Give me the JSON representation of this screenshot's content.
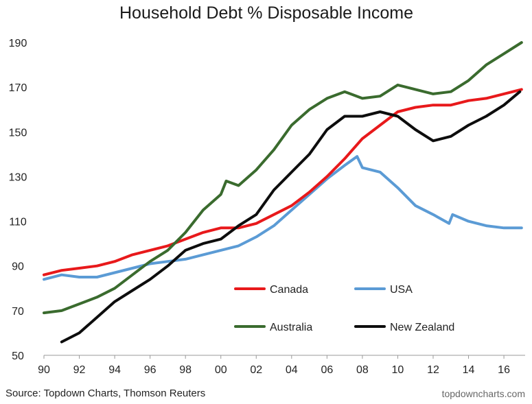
{
  "chart_data": {
    "type": "line",
    "title": "Household Debt % Disposable Income",
    "xlabel": "",
    "ylabel": "",
    "xlim": [
      1990,
      2017.2
    ],
    "ylim": [
      50,
      190
    ],
    "xticks": [
      1990,
      1992,
      1994,
      1996,
      1998,
      2000,
      2002,
      2004,
      2006,
      2008,
      2010,
      2012,
      2014,
      2016
    ],
    "xtick_labels": [
      "90",
      "92",
      "94",
      "96",
      "98",
      "00",
      "02",
      "04",
      "06",
      "08",
      "10",
      "12",
      "14",
      "16"
    ],
    "yticks": [
      50,
      70,
      90,
      110,
      130,
      150,
      170,
      190
    ],
    "ytick_labels": [
      "50",
      "70",
      "90",
      "110",
      "130",
      "150",
      "170",
      "190"
    ],
    "grid": false,
    "series": [
      {
        "name": "Canada",
        "color": "#e8191b",
        "x": [
          1990,
          1991,
          1992,
          1993,
          1994,
          1995,
          1996,
          1997,
          1998,
          1999,
          2000,
          2001,
          2002,
          2003,
          2004,
          2005,
          2006,
          2007,
          2008,
          2009,
          2010,
          2011,
          2012,
          2013,
          2014,
          2015,
          2016,
          2017
        ],
        "y": [
          86,
          88,
          89,
          90,
          92,
          95,
          97,
          99,
          102,
          105,
          107,
          107,
          109,
          113,
          117,
          123,
          130,
          138,
          147,
          153,
          159,
          161,
          162,
          162,
          164,
          165,
          167,
          169
        ]
      },
      {
        "name": "USA",
        "color": "#5b9bd5",
        "x": [
          1990,
          1991,
          1992,
          1993,
          1994,
          1995,
          1996,
          1997,
          1998,
          1999,
          2000,
          2001,
          2002,
          2003,
          2004,
          2005,
          2006,
          2007,
          2007.7,
          2008,
          2009,
          2010,
          2011,
          2012,
          2012.9,
          2013.1,
          2014,
          2015,
          2016,
          2017
        ],
        "y": [
          84,
          86,
          85,
          85,
          87,
          89,
          91,
          92,
          93,
          95,
          97,
          99,
          103,
          108,
          115,
          122,
          129,
          135,
          139,
          134,
          132,
          125,
          117,
          113,
          109,
          113,
          110,
          108,
          107,
          107
        ]
      },
      {
        "name": "Australia",
        "color": "#3a6b2e",
        "x": [
          1990,
          1991,
          1992,
          1993,
          1994,
          1995,
          1996,
          1997,
          1998,
          1999,
          2000,
          2000.3,
          2001,
          2002,
          2003,
          2004,
          2005,
          2006,
          2007,
          2008,
          2009,
          2010,
          2011,
          2012,
          2013,
          2014,
          2015,
          2016,
          2017
        ],
        "y": [
          69,
          70,
          73,
          76,
          80,
          86,
          92,
          97,
          105,
          115,
          122,
          128,
          126,
          133,
          142,
          153,
          160,
          165,
          168,
          165,
          166,
          171,
          169,
          167,
          168,
          173,
          180,
          185,
          190
        ]
      },
      {
        "name": "New Zealand",
        "color": "#0d0d0d",
        "x": [
          1991,
          1992,
          1993,
          1994,
          1995,
          1996,
          1997,
          1998,
          1999,
          2000,
          2001,
          2002,
          2003,
          2004,
          2005,
          2006,
          2007,
          2008,
          2009,
          2010,
          2011,
          2012,
          2013,
          2014,
          2015,
          2016,
          2016.9
        ],
        "y": [
          56,
          60,
          67,
          74,
          79,
          84,
          90,
          97,
          100,
          102,
          108,
          113,
          124,
          132,
          140,
          151,
          157,
          157,
          159,
          157,
          151,
          146,
          148,
          153,
          157,
          162,
          168
        ]
      }
    ],
    "legend_placement": "bottom-right"
  },
  "footer": {
    "source": "Source: Topdown Charts, Thomson Reuters",
    "website": "topdowncharts.com"
  }
}
